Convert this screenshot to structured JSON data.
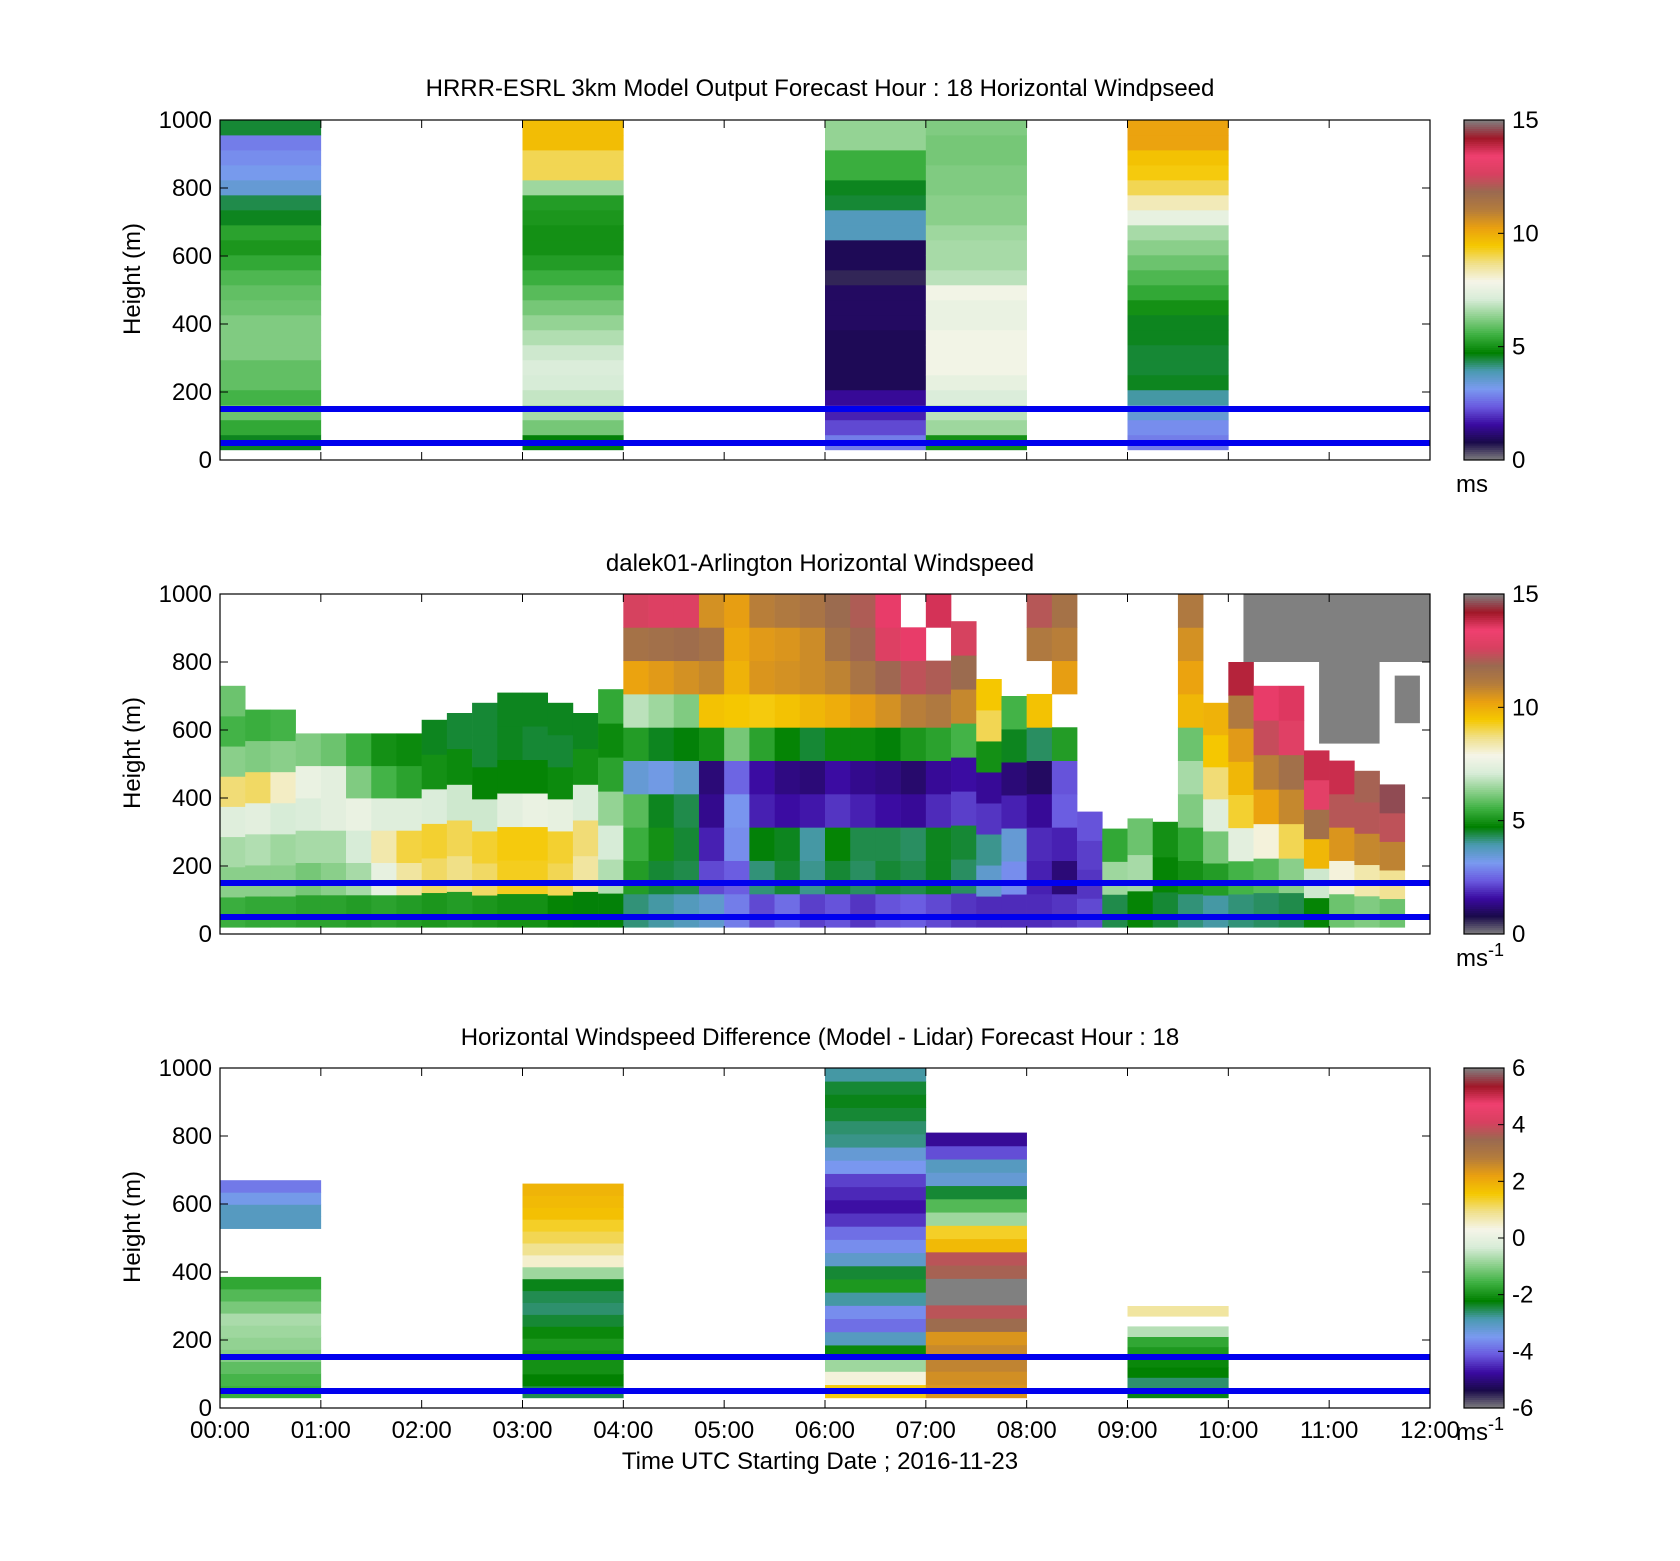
{
  "figure": {
    "xlabel": "Time UTC  Starting Date ; 2016-11-23",
    "x_tick_labels": [
      "00:00",
      "01:00",
      "02:00",
      "03:00",
      "04:00",
      "05:00",
      "06:00",
      "07:00",
      "08:00",
      "09:00",
      "10:00",
      "11:00",
      "12:00"
    ]
  },
  "reference_lines": {
    "heights_m": [
      50,
      150
    ],
    "color": "#0000ee"
  },
  "colors": {
    "colormap_stops": [
      "#808080",
      "#1a0a4a",
      "#3a0aa0",
      "#6a5ae0",
      "#7a9af0",
      "#4a9ab0",
      "#008000",
      "#3cb040",
      "#8cd08c",
      "#d8ecd8",
      "#f5f5e8",
      "#f0e08a",
      "#f5c800",
      "#eaa010",
      "#b47c3c",
      "#9a6a50",
      "#d84060",
      "#f04070",
      "#a01828",
      "#808080"
    ],
    "reference_line": "#0000ee"
  },
  "chart_data": [
    {
      "type": "heatmap",
      "name": "model",
      "title": "HRRR-ESRL 3km Model Output   Forecast Hour : 18 Horizontal Windpseed",
      "ylabel": "Height (m)",
      "xlim_hours": [
        0,
        12
      ],
      "ylim": [
        0,
        1000
      ],
      "y_tick_labels": [
        "0",
        "200",
        "400",
        "600",
        "800",
        "1000"
      ],
      "colorbar": {
        "range": [
          0,
          15
        ],
        "tick_labels": [
          "0",
          "5",
          "10",
          "15"
        ],
        "unit": "ms"
      },
      "columns": [
        {
          "start_hour": 0,
          "end_hour": 1,
          "values_bottom_to_top": [
            4.6,
            5.4,
            6.0,
            5.6,
            5.9,
            5.9,
            6.2,
            6.2,
            6.2,
            6.0,
            5.9,
            5.7,
            5.4,
            5.1,
            5.3,
            4.6,
            4.4,
            3.5,
            3.2,
            3.0,
            2.8,
            4.5
          ]
        },
        {
          "start_hour": 3,
          "end_hour": 4,
          "values_bottom_to_top": [
            4.7,
            6.1,
            6.6,
            6.9,
            7.1,
            7.2,
            7.0,
            6.7,
            6.4,
            6.1,
            5.8,
            5.5,
            5.2,
            5.0,
            5.0,
            5.1,
            5.2,
            6.5,
            9.0,
            9.0,
            9.7,
            9.7
          ]
        },
        {
          "start_hour": 6,
          "end_hour": 7,
          "values_bottom_to_top": [
            2.8,
            2.2,
            1.8,
            1.5,
            0.9,
            0.9,
            0.9,
            0.9,
            1.0,
            1.0,
            1.0,
            0.6,
            0.9,
            0.9,
            3.8,
            3.8,
            4.5,
            4.6,
            5.5,
            5.5,
            6.4,
            6.4
          ]
        },
        {
          "start_hour": 7,
          "end_hour": 8,
          "values_bottom_to_top": [
            5.0,
            6.5,
            6.8,
            7.2,
            7.5,
            7.8,
            7.8,
            7.8,
            7.6,
            7.6,
            7.8,
            6.8,
            6.6,
            6.6,
            6.5,
            6.3,
            6.3,
            6.2,
            6.2,
            6.1,
            6.1,
            6.2
          ]
        },
        {
          "start_hour": 9,
          "end_hour": 10,
          "values_bottom_to_top": [
            2.8,
            3.0,
            3.5,
            4.0,
            4.6,
            4.5,
            4.5,
            4.6,
            4.6,
            5.0,
            5.4,
            5.7,
            6.0,
            6.3,
            6.6,
            7.5,
            8.3,
            9.0,
            9.4,
            9.6,
            10.2,
            10.2
          ]
        }
      ]
    },
    {
      "type": "heatmap",
      "name": "lidar",
      "title": "dalek01-Arlington  Horizontal Windspeed",
      "ylabel": "Height (m)",
      "xlim_hours": [
        0,
        12
      ],
      "ylim": [
        0,
        1000
      ],
      "y_tick_labels": [
        "0",
        "200",
        "400",
        "600",
        "800",
        "1000"
      ],
      "colorbar": {
        "range": [
          0,
          15
        ],
        "tick_labels": [
          "0",
          "5",
          "10",
          "15"
        ],
        "unit": "ms-1"
      },
      "column_width_hours": 0.25,
      "column_profiles": [
        {
          "top_m": 730,
          "gaps_m": [],
          "bottom_to_top": [
            5.5,
            6.3,
            6.6,
            7.3,
            8.8,
            6.3,
            5.6,
            6.0
          ]
        },
        {
          "top_m": 660,
          "gaps_m": [],
          "bottom_to_top": [
            5.4,
            6.3,
            6.7,
            7.4,
            8.9,
            6.2,
            5.5
          ]
        },
        {
          "top_m": 660,
          "gaps_m": [],
          "bottom_to_top": [
            5.4,
            6.3,
            6.5,
            7.1,
            8.2,
            6.3,
            5.6
          ]
        },
        {
          "top_m": 590,
          "gaps_m": [],
          "bottom_to_top": [
            5.3,
            6.1,
            6.6,
            7.2,
            7.6,
            6.2
          ]
        },
        {
          "top_m": 590,
          "gaps_m": [],
          "bottom_to_top": [
            5.3,
            6.3,
            6.6,
            7.4,
            7.4,
            6.0
          ]
        },
        {
          "top_m": 590,
          "gaps_m": [],
          "bottom_to_top": [
            5.2,
            6.6,
            7.1,
            7.6,
            6.2,
            5.5
          ]
        },
        {
          "top_m": 590,
          "gaps_m": [],
          "bottom_to_top": [
            5.3,
            7.5,
            8.4,
            7.3,
            5.6,
            5.0
          ]
        },
        {
          "top_m": 590,
          "gaps_m": [],
          "bottom_to_top": [
            5.2,
            8.5,
            9.1,
            7.3,
            5.3,
            4.9
          ]
        },
        {
          "top_m": 630,
          "gaps_m": [],
          "bottom_to_top": [
            5.1,
            8.9,
            9.2,
            7.2,
            5.0,
            4.6
          ]
        },
        {
          "top_m": 650,
          "gaps_m": [],
          "bottom_to_top": [
            5.2,
            8.7,
            9.0,
            7.0,
            4.9,
            4.5
          ]
        },
        {
          "top_m": 680,
          "gaps_m": [],
          "bottom_to_top": [
            5.1,
            8.9,
            9.2,
            7.0,
            4.8,
            4.5,
            4.5
          ]
        },
        {
          "top_m": 710,
          "gaps_m": [],
          "bottom_to_top": [
            5.0,
            9.3,
            9.4,
            7.4,
            4.8,
            4.6,
            4.6
          ]
        },
        {
          "top_m": 710,
          "gaps_m": [],
          "bottom_to_top": [
            5.0,
            9.3,
            9.4,
            7.6,
            4.8,
            4.5,
            4.6
          ]
        },
        {
          "top_m": 680,
          "gaps_m": [],
          "bottom_to_top": [
            4.8,
            9.0,
            9.2,
            7.5,
            4.9,
            4.5,
            4.6
          ]
        },
        {
          "top_m": 650,
          "gaps_m": [],
          "bottom_to_top": [
            4.7,
            8.5,
            8.8,
            7.2,
            5.0,
            4.6
          ]
        },
        {
          "top_m": 720,
          "gaps_m": [],
          "bottom_to_top": [
            4.7,
            6.7,
            7.1,
            6.4,
            5.3,
            4.9,
            5.4
          ]
        },
        {
          "top_m": 1000,
          "gaps_m": [],
          "bottom_to_top": [
            4.2,
            5.2,
            5.5,
            5.8,
            3.5,
            5.2,
            6.8,
            10.2,
            11.5,
            12.6
          ]
        },
        {
          "top_m": 1000,
          "gaps_m": [],
          "bottom_to_top": [
            4.0,
            4.5,
            5.0,
            4.6,
            3.3,
            4.6,
            6.5,
            10.4,
            11.6,
            12.8
          ]
        },
        {
          "top_m": 1000,
          "gaps_m": [],
          "bottom_to_top": [
            3.8,
            4.4,
            4.5,
            4.4,
            3.6,
            4.7,
            6.2,
            10.6,
            11.7,
            12.8
          ]
        },
        {
          "top_m": 1000,
          "gaps_m": [],
          "bottom_to_top": [
            3.6,
            2.2,
            1.8,
            1.4,
            1.2,
            5.0,
            9.6,
            10.8,
            11.5,
            10.6
          ]
        },
        {
          "top_m": 1000,
          "gaps_m": [],
          "bottom_to_top": [
            2.8,
            2.4,
            3.0,
            3.1,
            2.5,
            6.1,
            9.5,
            9.9,
            10.1,
            10.3
          ]
        },
        {
          "top_m": 1000,
          "gaps_m": [],
          "bottom_to_top": [
            2.2,
            4.2,
            4.7,
            1.8,
            1.6,
            5.3,
            9.4,
            10.5,
            10.4,
            11.0
          ]
        },
        {
          "top_m": 1000,
          "gaps_m": [],
          "bottom_to_top": [
            2.6,
            4.5,
            4.6,
            1.6,
            1.3,
            4.8,
            9.6,
            10.6,
            10.5,
            11.2
          ]
        },
        {
          "top_m": 1000,
          "gaps_m": [],
          "bottom_to_top": [
            2.1,
            4.1,
            4.0,
            1.7,
            1.2,
            4.5,
            9.8,
            10.7,
            10.7,
            11.4
          ]
        },
        {
          "top_m": 1000,
          "gaps_m": [],
          "bottom_to_top": [
            2.3,
            4.5,
            4.8,
            2.0,
            1.6,
            4.9,
            10.0,
            10.9,
            11.5,
            11.8
          ]
        },
        {
          "top_m": 1000,
          "gaps_m": [],
          "bottom_to_top": [
            2.0,
            4.3,
            4.4,
            1.8,
            1.4,
            4.9,
            10.3,
            11.4,
            11.9,
            12.1
          ]
        },
        {
          "top_m": 1000,
          "gaps_m": [],
          "bottom_to_top": [
            2.3,
            4.5,
            4.4,
            1.6,
            1.3,
            4.7,
            10.6,
            11.9,
            12.8,
            13.5
          ]
        },
        {
          "top_m": 1000,
          "gaps_m": [
            [
              790,
              830
            ],
            [
              920,
              960
            ]
          ],
          "bottom_to_top": [
            2.4,
            4.4,
            4.3,
            1.5,
            1.1,
            5.1,
            11.0,
            12.3,
            13.5,
            14.0
          ]
        },
        {
          "top_m": 1000,
          "gaps_m": [
            [
              830,
              870
            ]
          ],
          "bottom_to_top": [
            2.2,
            4.6,
            4.6,
            1.9,
            1.5,
            5.3,
            11.2,
            12.1,
            12.9,
            13.7
          ]
        },
        {
          "top_m": 920,
          "gaps_m": [],
          "bottom_to_top": [
            2.0,
            4.3,
            4.5,
            2.1,
            1.6,
            5.6,
            10.8,
            11.8,
            12.6
          ]
        },
        {
          "top_m": 750,
          "gaps_m": [],
          "bottom_to_top": [
            1.9,
            3.6,
            4.1,
            2.0,
            1.5,
            5.0,
            9.0,
            9.5
          ]
        },
        {
          "top_m": 700,
          "gaps_m": [],
          "bottom_to_top": [
            1.9,
            3.0,
            3.5,
            1.8,
            1.2,
            4.6,
            5.6
          ]
        },
        {
          "top_m": 1000,
          "gaps_m": [
            [
              880,
              930
            ],
            [
              700,
              780
            ]
          ],
          "bottom_to_top": [
            1.9,
            1.8,
            1.9,
            1.5,
            1.0,
            4.3,
            9.6,
            10.0,
            11.2,
            12.2
          ]
        },
        {
          "top_m": 1000,
          "gaps_m": [
            [
              640,
              690
            ]
          ],
          "bottom_to_top": [
            2.0,
            1.2,
            1.8,
            2.4,
            2.3,
            5.2,
            9.5,
            10.3,
            11.0,
            11.5
          ]
        },
        {
          "top_m": 360,
          "gaps_m": [],
          "bottom_to_top": [
            2.2,
            2.0,
            2.1,
            2.3
          ]
        },
        {
          "top_m": 310,
          "gaps_m": [],
          "bottom_to_top": [
            4.4,
            6.5,
            5.4
          ]
        },
        {
          "top_m": 340,
          "gaps_m": [],
          "bottom_to_top": [
            4.8,
            6.6,
            6.0
          ]
        },
        {
          "top_m": 330,
          "gaps_m": [],
          "bottom_to_top": [
            4.5,
            4.8,
            5.0
          ]
        },
        {
          "top_m": 1000,
          "gaps_m": [],
          "bottom_to_top": [
            4.2,
            5.0,
            5.4,
            6.2,
            6.6,
            6.0,
            9.8,
            10.2,
            10.6,
            11.2
          ]
        },
        {
          "top_m": 680,
          "gaps_m": [],
          "bottom_to_top": [
            4.0,
            5.2,
            6.1,
            7.3,
            8.8,
            9.5,
            9.9
          ]
        },
        {
          "top_m": 800,
          "gaps_m": [],
          "bottom_to_top": [
            4.2,
            5.6,
            7.4,
            9.2,
            9.8,
            10.4,
            11.2,
            14.0
          ]
        },
        {
          "top_m": 730,
          "gaps_m": [],
          "bottom_to_top": [
            4.3,
            5.8,
            8.0,
            10.2,
            11.0,
            12.4,
            13.5
          ]
        },
        {
          "top_m": 730,
          "gaps_m": [],
          "bottom_to_top": [
            4.4,
            6.3,
            9.0,
            10.8,
            11.6,
            12.9,
            13.6
          ]
        },
        {
          "top_m": 540,
          "gaps_m": [],
          "bottom_to_top": [
            4.8,
            7.0,
            9.8,
            11.6,
            13.0,
            13.8
          ]
        },
        {
          "top_m": 510,
          "gaps_m": [],
          "bottom_to_top": [
            6.0,
            8.0,
            10.5,
            12.2,
            13.8
          ]
        },
        {
          "top_m": 480,
          "gaps_m": [],
          "bottom_to_top": [
            6.2,
            8.4,
            10.8,
            12.2,
            12.0
          ]
        },
        {
          "top_m": 440,
          "gaps_m": [],
          "bottom_to_top": [
            6.0,
            8.6,
            10.9,
            12.3,
            14.6
          ]
        }
      ],
      "missing_region_value_m": {
        "note_color": "#808080"
      }
    },
    {
      "type": "heatmap",
      "name": "difference",
      "title": "Horizontal Windspeed Difference (Model - Lidar) Forecast Hour : 18",
      "ylabel": "Height (m)",
      "xlim_hours": [
        0,
        12
      ],
      "ylim": [
        0,
        1000
      ],
      "y_tick_labels": [
        "0",
        "200",
        "400",
        "600",
        "800",
        "1000"
      ],
      "colorbar": {
        "range": [
          -6,
          6
        ],
        "tick_labels": [
          "-6",
          "-4",
          "-2",
          "0",
          "2",
          "4",
          "6"
        ],
        "unit": "ms-1"
      },
      "columns": [
        {
          "start_hour": 0,
          "end_hour": 1,
          "top_m": 670,
          "gaps_m": [
            [
              400,
              500
            ]
          ],
          "values_bottom_to_top": [
            -1.6,
            -1.5,
            -1.3,
            -1.0,
            -0.9,
            -0.8,
            -0.7,
            -1.1,
            -1.4,
            -1.7,
            -2.2,
            -2.8,
            null,
            null,
            -3.0,
            -3.0,
            -3.4,
            -3.8
          ]
        },
        {
          "start_hour": 3,
          "end_hour": 4,
          "top_m": 660,
          "gaps_m": [],
          "values_bottom_to_top": [
            -2.5,
            -2.2,
            -2.0,
            -2.0,
            -1.9,
            -2.1,
            -2.4,
            -2.6,
            -2.5,
            -2.3,
            -0.8,
            0.5,
            0.9,
            1.2,
            1.4,
            1.7,
            1.8,
            1.9
          ]
        },
        {
          "start_hour": 6,
          "end_hour": 7,
          "top_m": 1000,
          "gaps_m": [],
          "values_bottom_to_top": [
            1.5,
            0.4,
            -0.8,
            -2.1,
            -3.0,
            -3.9,
            -3.6,
            -2.8,
            -1.9,
            -2.4,
            -3.1,
            -3.6,
            -3.9,
            -4.4,
            -4.7,
            -4.5,
            -4.3,
            -3.5,
            -3.2,
            -2.7,
            -2.6,
            -2.4,
            -2.3,
            -2.4,
            -2.8
          ]
        },
        {
          "start_hour": 7,
          "end_hour": 8,
          "top_m": 810,
          "gaps_m": [],
          "values_bottom_to_top": [
            2.4,
            2.5,
            2.7,
            2.6,
            2.4,
            3.4,
            3.8,
            6.0,
            6.0,
            3.6,
            3.8,
            1.8,
            1.4,
            -0.8,
            -1.4,
            -2.4,
            -3.2,
            -3.0,
            -4.2,
            -4.8
          ]
        },
        {
          "start_hour": 9,
          "end_hour": 10,
          "top_m": 300,
          "gaps_m": [
            [
              250,
              280
            ]
          ],
          "values_bottom_to_top": [
            -2.3,
            -2.6,
            -2.2,
            -2.1,
            -1.9,
            -1.7,
            -0.6,
            0.4,
            0.8
          ]
        }
      ]
    }
  ]
}
